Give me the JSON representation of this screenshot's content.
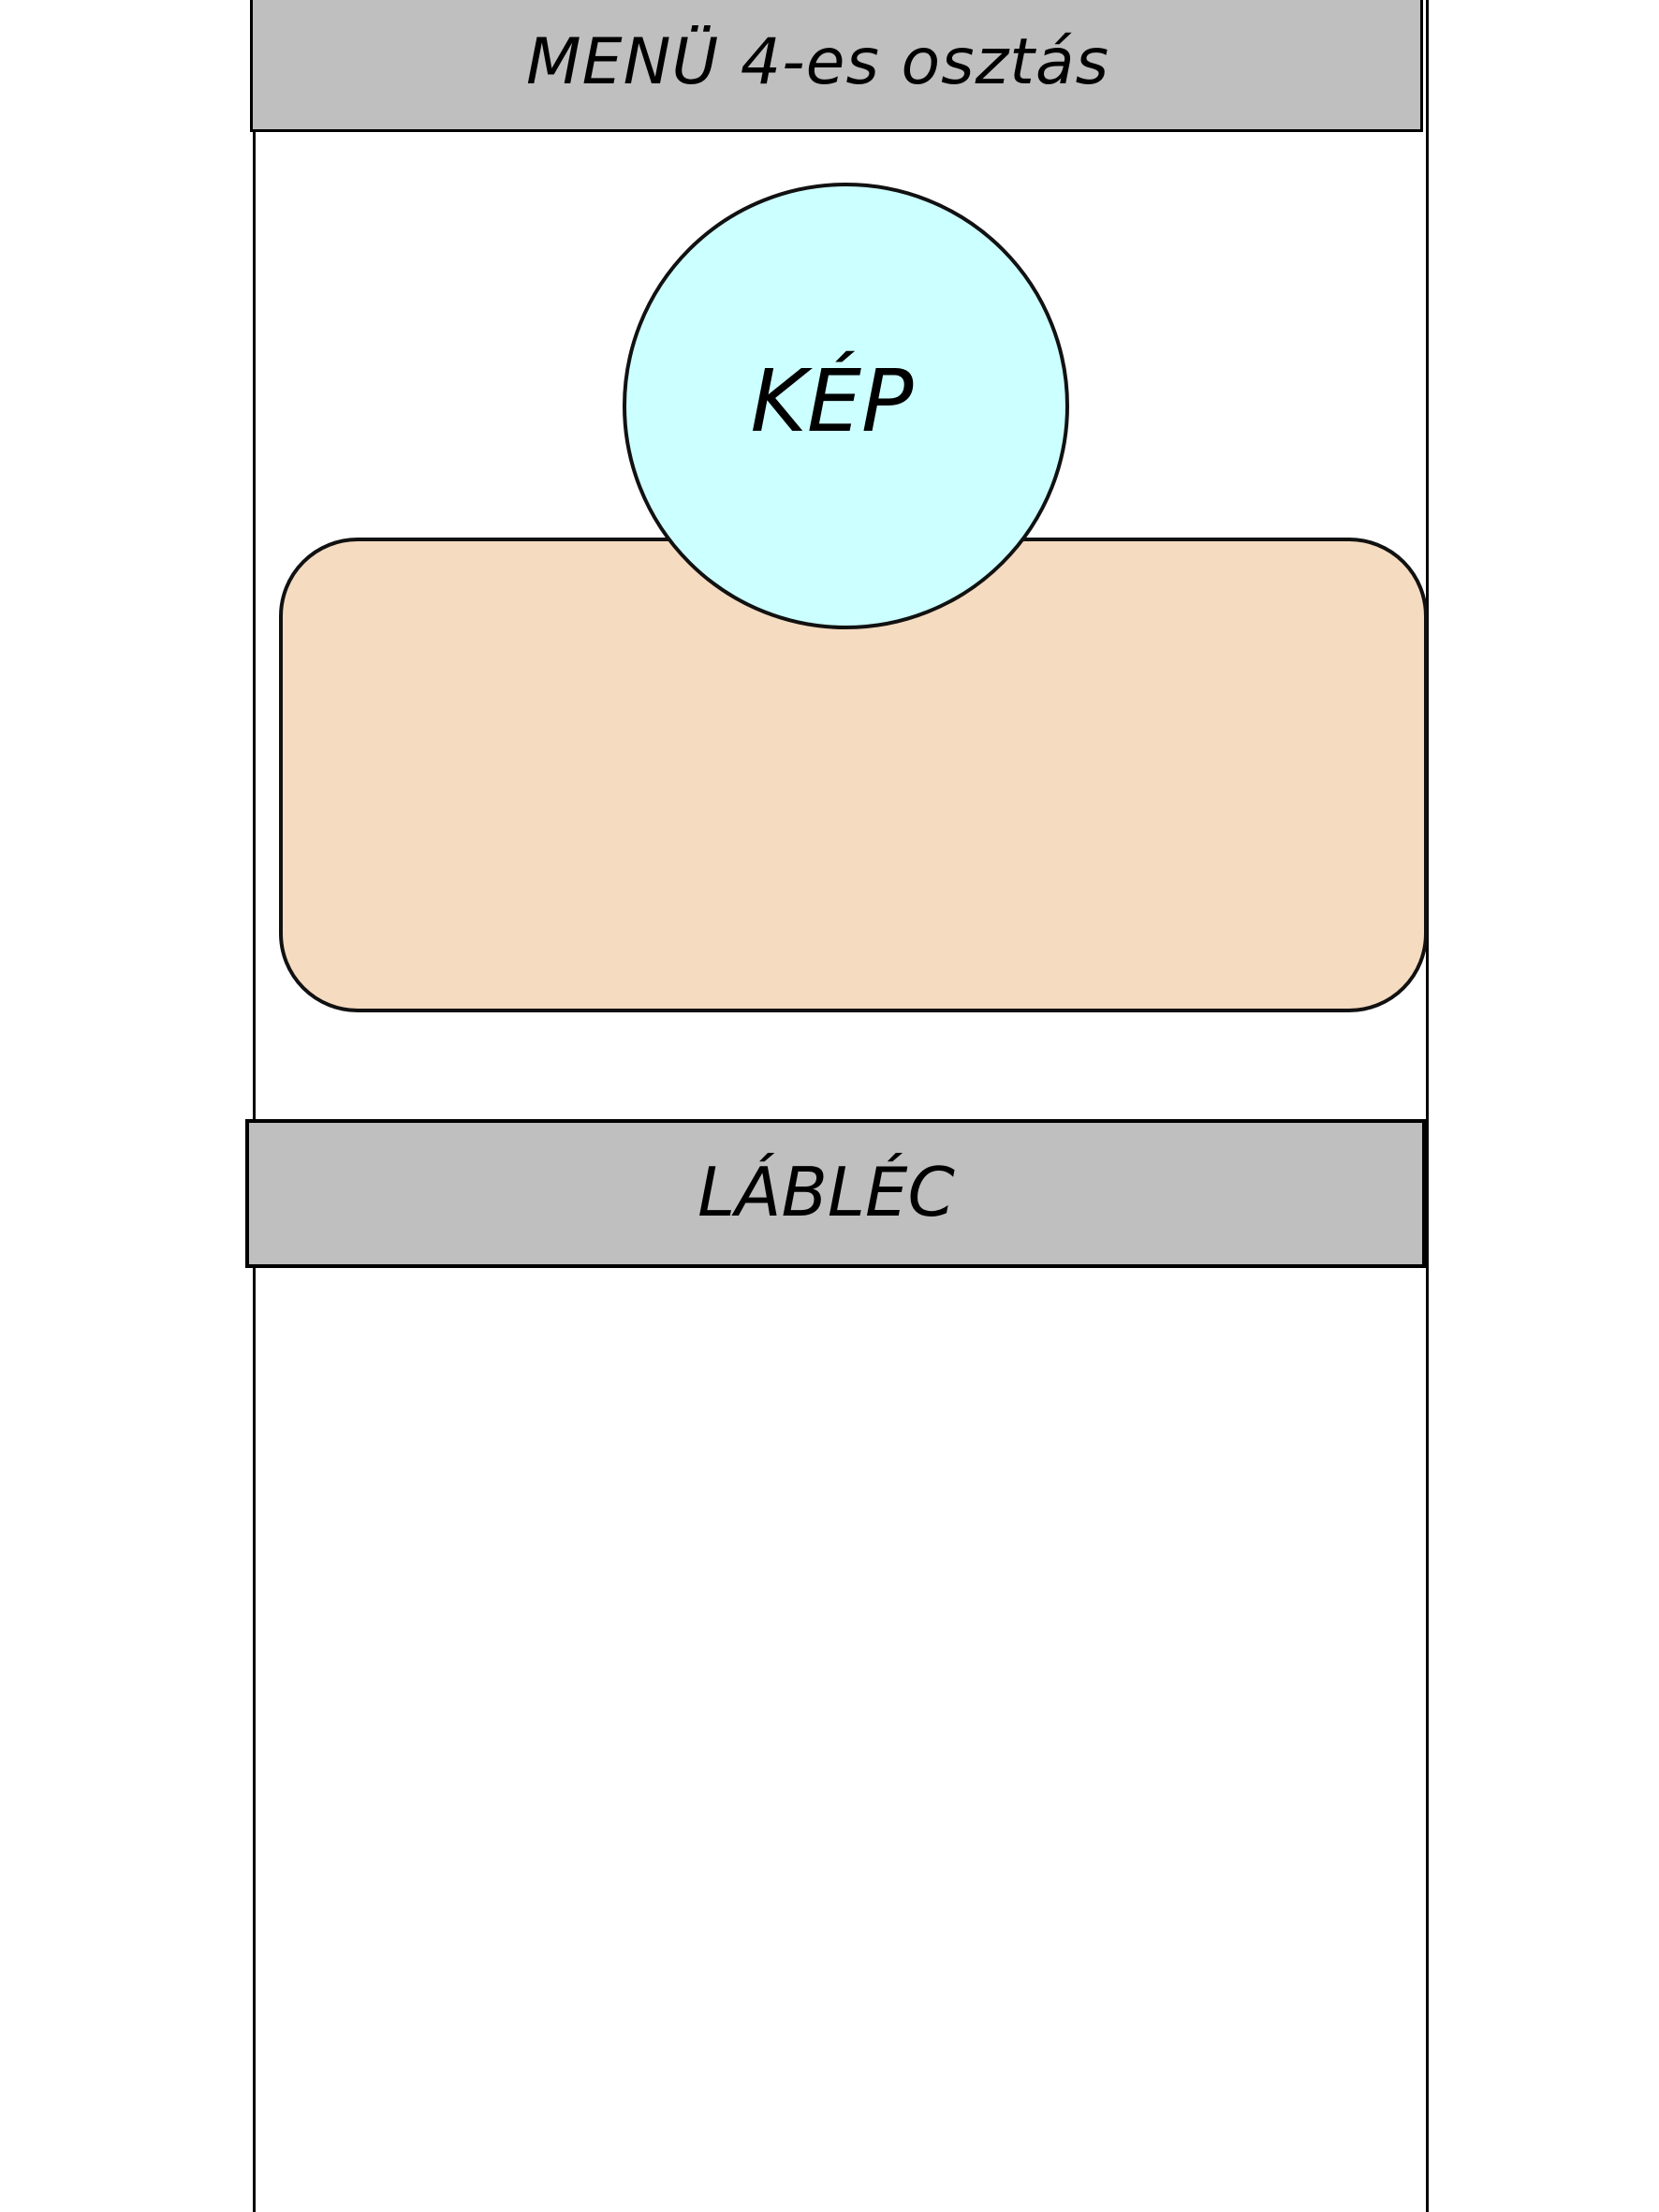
{
  "header": {
    "menu_label": "MENÜ 4-es osztás"
  },
  "main": {
    "image_placeholder_label": "KÉP"
  },
  "footer": {
    "label": "LÁBLÉC"
  },
  "colors": {
    "bar_fill": "#bfbfbf",
    "image_fill": "#ccffff",
    "card_fill": "#f5dbc0",
    "outline": "#000000",
    "background": "#ffffff"
  }
}
